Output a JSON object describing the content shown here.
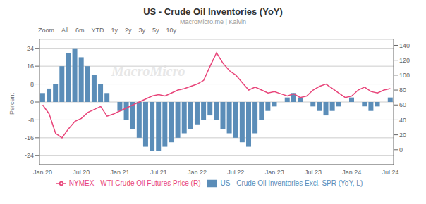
{
  "chart_data": {
    "type": "bar",
    "title": "US - Crude Oil Inventories (YoY)",
    "subtitle": "MacroMicro.me | Kalvin",
    "annotations": [
      "Zoom",
      "All",
      "6m",
      "YTD",
      "1y",
      "2y",
      "3y",
      "5y",
      "10y",
      "MacroMicro"
    ],
    "ylabel": "Percent",
    "categories": [
      "Jan 20",
      null,
      null,
      null,
      null,
      null,
      "Jul 20",
      null,
      null,
      null,
      null,
      null,
      "Jan 21",
      null,
      null,
      null,
      null,
      null,
      "Jul 21",
      null,
      null,
      null,
      null,
      null,
      "Jan 22",
      null,
      null,
      null,
      null,
      null,
      "Jul 22",
      null,
      null,
      null,
      null,
      null,
      "Jan 23",
      null,
      null,
      null,
      null,
      null,
      "Jul 23",
      null,
      null,
      null,
      null,
      null,
      "Jan 24",
      null,
      null,
      null,
      null,
      null,
      "Jul 24"
    ],
    "series": [
      {
        "name": "US - Crude Oil Inventories Excl. SPR (YoY, L)",
        "type": "bar",
        "color": "#5b8db8",
        "values": [
          4.0,
          6.0,
          8.0,
          16.0,
          22.0,
          24.0,
          20.0,
          16.0,
          12.0,
          8.0,
          4.0,
          0.0,
          -4.0,
          -8.0,
          -12.0,
          -16.0,
          -20.0,
          -22.0,
          -22.0,
          -20.0,
          -18.0,
          -16.0,
          -14.0,
          -12.0,
          -10.0,
          -8.0,
          -6.0,
          -8.0,
          -12.0,
          -14.0,
          -16.0,
          -18.0,
          -20.0,
          -14.0,
          -8.0,
          -4.0,
          -2.0,
          0.0,
          2.0,
          4.0,
          2.0,
          0.0,
          -2.0,
          -4.0,
          -6.0,
          -4.0,
          -2.0,
          0.0,
          2.0,
          0.0,
          -2.0,
          -4.0,
          -2.0,
          0.0,
          2.0
        ]
      },
      {
        "name": "NYMEX - WTI Crude Oil Futures Price (R)",
        "type": "line",
        "axis": "y2",
        "color": "#e8457a",
        "values": [
          60.0,
          48.0,
          22.0,
          16.0,
          28.0,
          38.0,
          42.0,
          50.0,
          54.0,
          58.0,
          45.0,
          48.0,
          52.0,
          56.0,
          60.0,
          64.0,
          68.0,
          72.0,
          74.0,
          72.0,
          76.0,
          80.0,
          82.0,
          85.0,
          88.0,
          93.0,
          112.0,
          130.0,
          116.0,
          106.0,
          100.0,
          90.0,
          80.0,
          84.0,
          80.0,
          76.0,
          78.0,
          75.0,
          72.0,
          75.0,
          70.0,
          72.0,
          80.0,
          85.0,
          88.0,
          82.0,
          76.0,
          70.0,
          72.0,
          80.0,
          84.0,
          78.0,
          76.0,
          80.0,
          82.0
        ]
      }
    ],
    "ylim": [
      -28,
      28
    ],
    "yticks": [
      24,
      16,
      8,
      0,
      -8,
      -16,
      -24
    ],
    "y2lim": [
      -20,
      148
    ],
    "y2ticks": [
      140,
      120,
      100,
      80,
      60,
      40,
      20,
      0
    ],
    "grid": true,
    "legend": "bottom"
  }
}
